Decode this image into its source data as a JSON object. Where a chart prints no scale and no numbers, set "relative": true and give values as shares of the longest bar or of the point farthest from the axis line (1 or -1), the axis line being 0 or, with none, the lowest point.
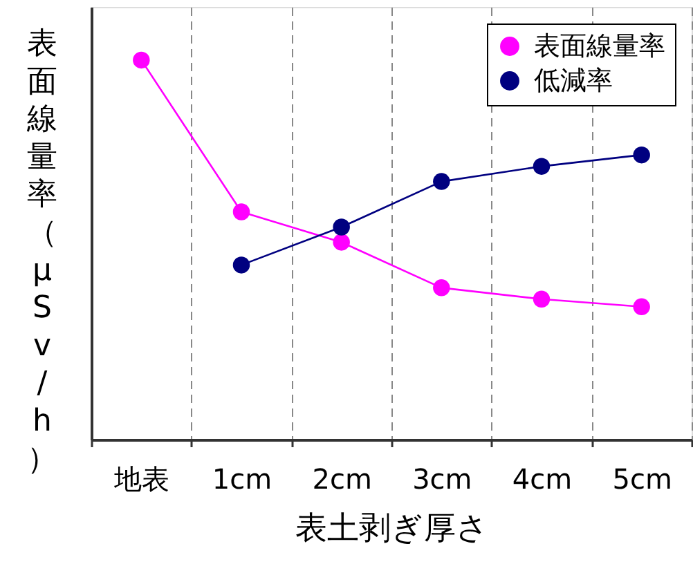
{
  "chart_data": {
    "type": "line",
    "relative": true,
    "ylabel": "表面線量率（μSv/h）",
    "xlabel": "表土剥ぎ厚さ",
    "categories": [
      "地表",
      "1cm",
      "2cm",
      "3cm",
      "4cm",
      "5cm"
    ],
    "series": [
      {
        "name": "表面線量率",
        "color": "#ff00ff",
        "values": [
          1.0,
          0.6,
          0.52,
          0.4,
          0.37,
          0.35
        ]
      },
      {
        "name": "低減率",
        "color": "#000080",
        "values": [
          null,
          0.46,
          0.56,
          0.68,
          0.72,
          0.75
        ]
      }
    ],
    "marker": "circle",
    "line_style": "solid",
    "grid": "x",
    "legend": "top right"
  }
}
